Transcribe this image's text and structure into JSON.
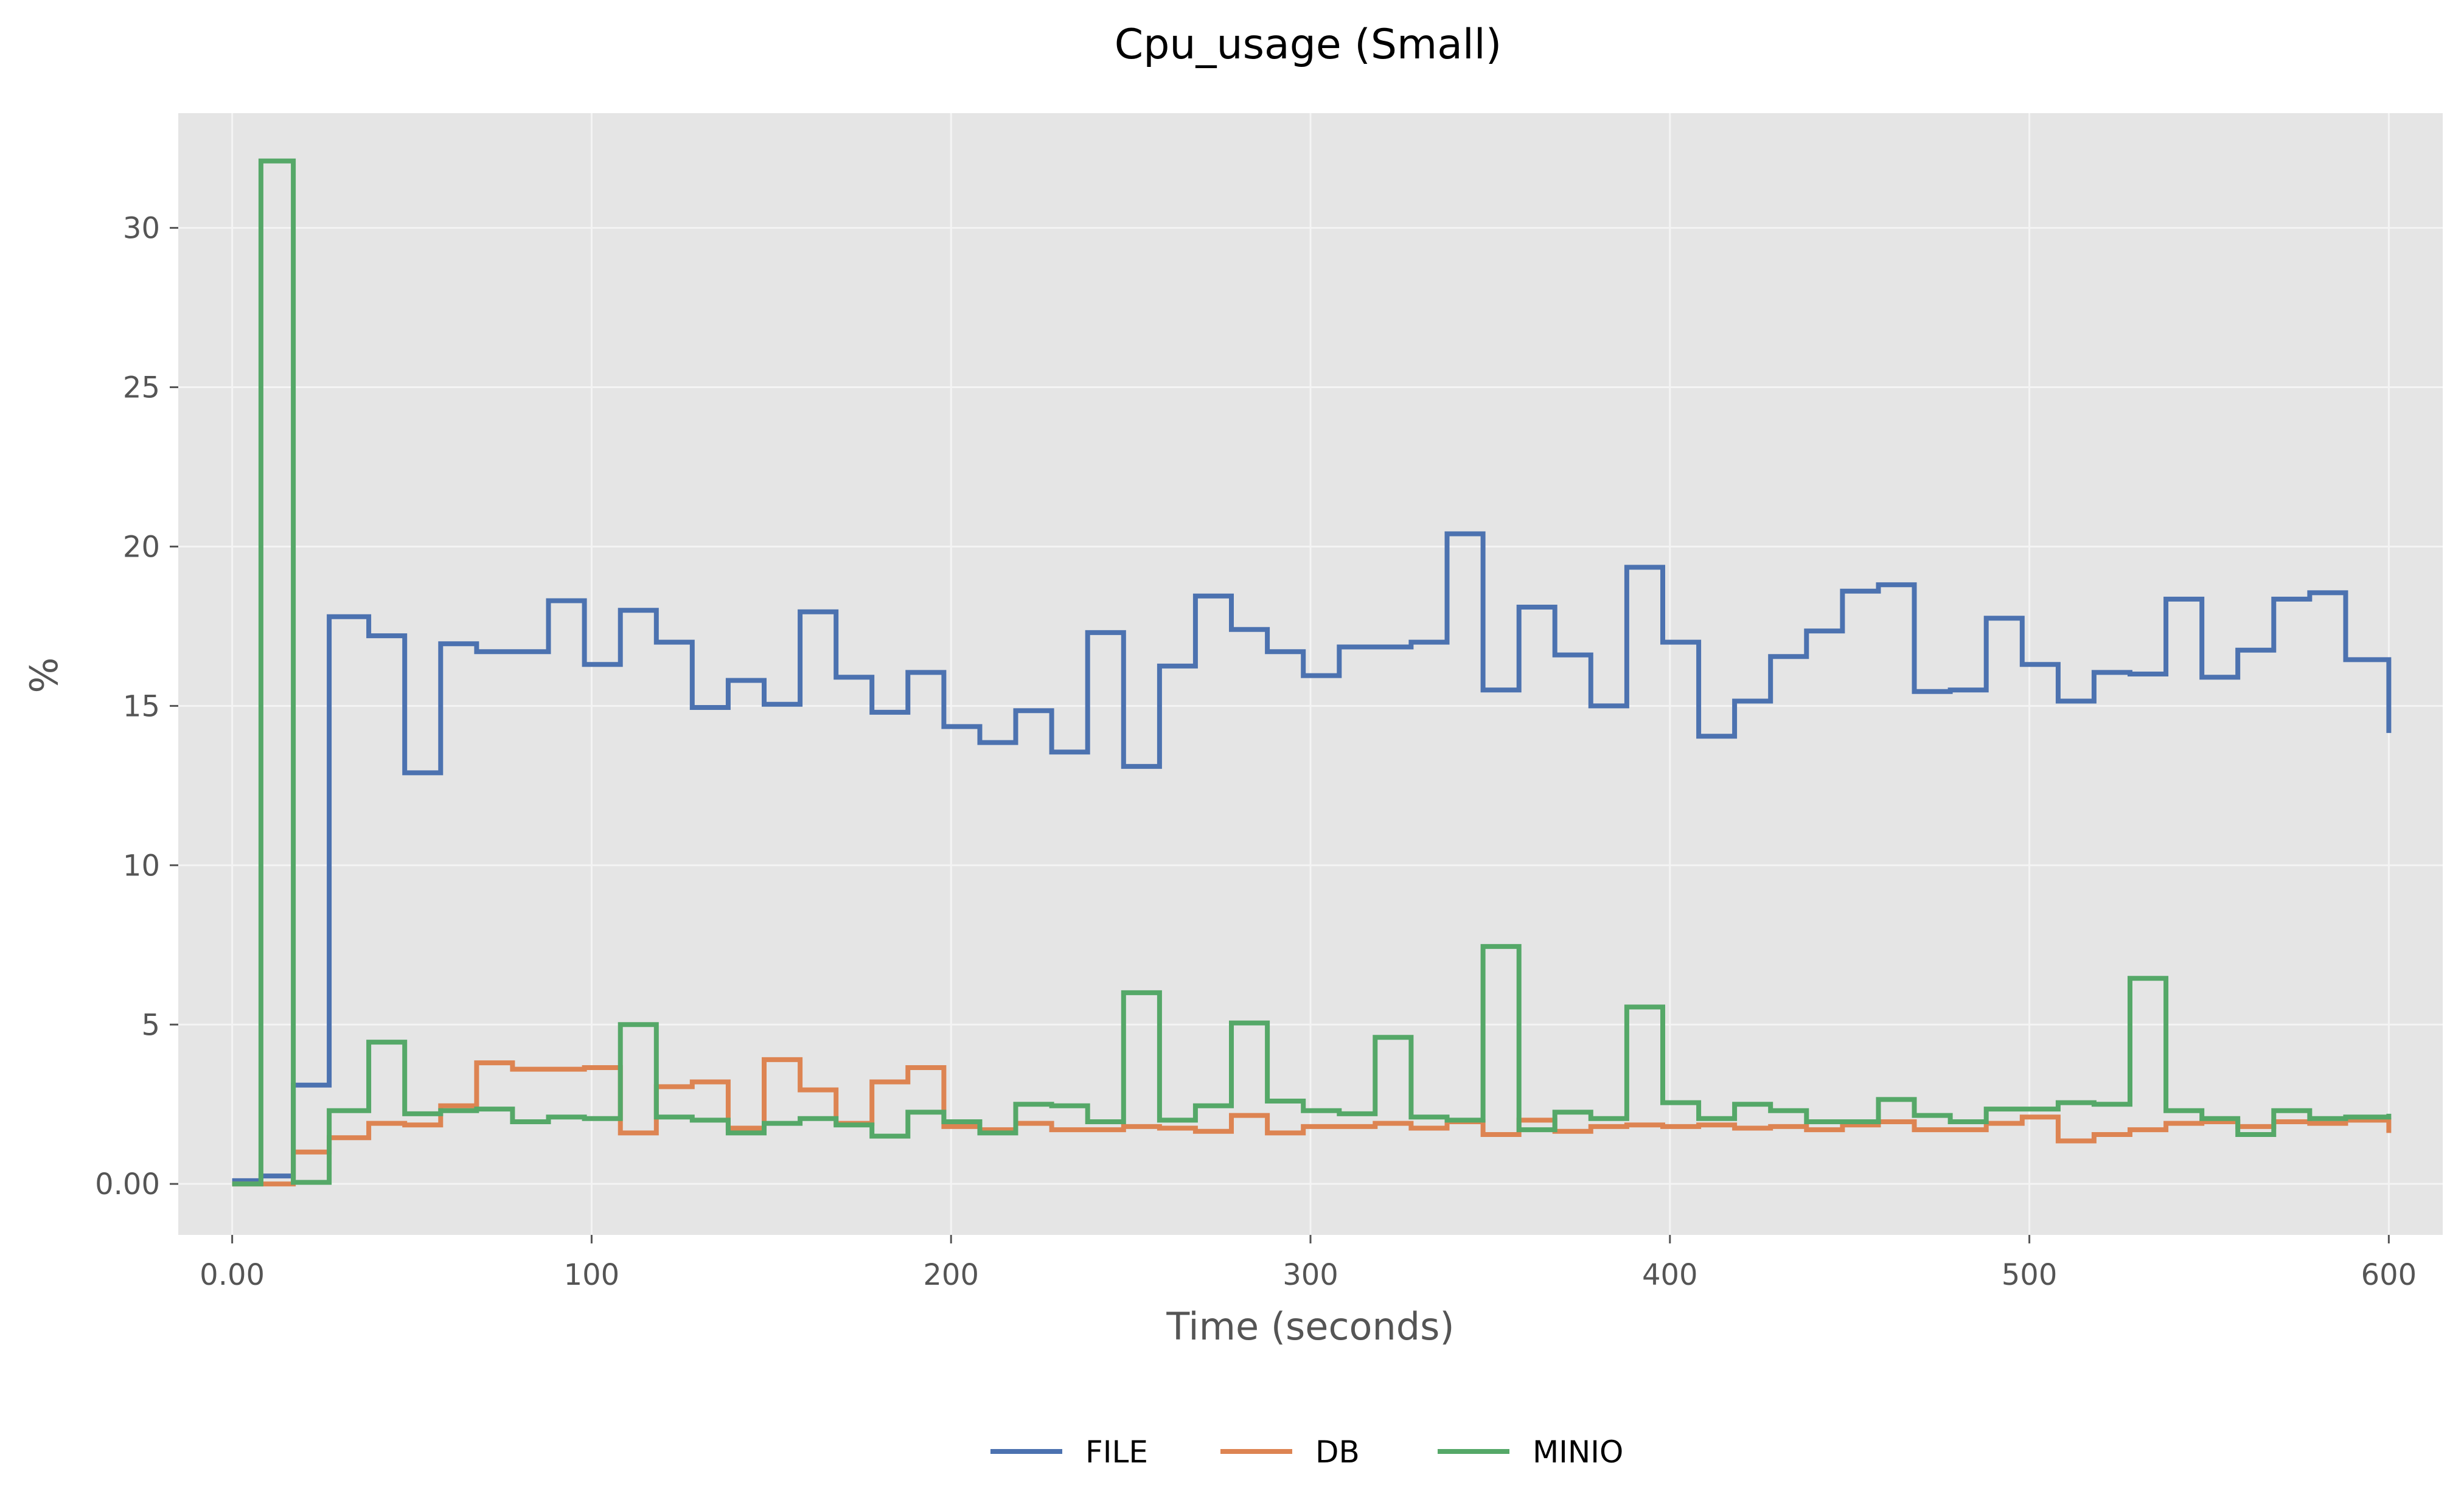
{
  "chart_data": {
    "type": "line",
    "title": "Cpu_usage (Small)",
    "xlabel": "Time (seconds)",
    "ylabel": "%",
    "xlim": [
      -15,
      615
    ],
    "ylim": [
      -1.6,
      33.6
    ],
    "x_ticks": [
      0,
      100,
      200,
      300,
      400,
      500,
      600
    ],
    "x_tick_labels": [
      "0.00",
      "100",
      "200",
      "300",
      "400",
      "500",
      "600"
    ],
    "y_ticks": [
      0,
      5,
      10,
      15,
      20,
      25,
      30
    ],
    "y_tick_labels": [
      "0.00",
      "5",
      "10",
      "15",
      "20",
      "25",
      "30"
    ],
    "grid": true,
    "step": true,
    "legend_position": "bottom-center",
    "x": [
      0,
      8,
      17,
      27,
      38,
      48,
      58,
      68,
      78,
      88,
      98,
      108,
      118,
      128,
      138,
      148,
      158,
      168,
      178,
      188,
      198,
      208,
      218,
      228,
      238,
      248,
      258,
      268,
      278,
      288,
      298,
      308,
      318,
      328,
      338,
      348,
      358,
      368,
      378,
      388,
      398,
      408,
      418,
      428,
      438,
      448,
      458,
      468,
      478,
      488,
      498,
      508,
      518,
      528,
      538,
      548,
      558,
      568,
      578,
      588,
      600
    ],
    "series": [
      {
        "name": "FILE",
        "color": "#4c72b0",
        "values": [
          0.1,
          0.25,
          3.1,
          17.8,
          17.2,
          12.9,
          16.95,
          16.7,
          16.7,
          18.3,
          16.3,
          18.0,
          17.0,
          14.95,
          15.8,
          15.05,
          17.95,
          15.9,
          14.8,
          16.05,
          14.35,
          13.85,
          14.85,
          13.55,
          17.3,
          13.1,
          16.25,
          18.45,
          17.4,
          16.7,
          15.95,
          16.85,
          16.85,
          17.0,
          20.4,
          15.5,
          18.1,
          16.6,
          15.0,
          19.35,
          17.0,
          14.05,
          15.15,
          16.55,
          17.35,
          18.6,
          18.8,
          15.45,
          15.5,
          17.75,
          16.3,
          15.15,
          16.05,
          16.0,
          18.35,
          15.9,
          16.75,
          18.35,
          18.55,
          16.45,
          14.15
        ]
      },
      {
        "name": "DB",
        "color": "#dd8452",
        "values": [
          0.0,
          0.0,
          1.0,
          1.45,
          1.9,
          1.85,
          2.45,
          3.8,
          3.6,
          3.6,
          3.65,
          1.6,
          3.05,
          3.2,
          1.75,
          3.9,
          2.95,
          1.9,
          3.2,
          3.65,
          1.8,
          1.7,
          1.9,
          1.7,
          1.7,
          1.8,
          1.75,
          1.65,
          2.15,
          1.6,
          1.8,
          1.8,
          1.9,
          1.75,
          1.95,
          1.55,
          2.0,
          1.65,
          1.8,
          1.85,
          1.8,
          1.85,
          1.75,
          1.8,
          1.7,
          1.85,
          1.95,
          1.7,
          1.7,
          1.9,
          2.1,
          1.35,
          1.55,
          1.7,
          1.9,
          1.95,
          1.8,
          1.95,
          1.9,
          2.0,
          1.6
        ]
      },
      {
        "name": "MINIO",
        "color": "#55a868",
        "values": [
          0.0,
          32.1,
          0.05,
          2.3,
          4.45,
          2.2,
          2.3,
          2.35,
          1.95,
          2.1,
          2.05,
          5.0,
          2.1,
          2.0,
          1.6,
          1.9,
          2.05,
          1.85,
          1.5,
          2.25,
          1.95,
          1.6,
          2.5,
          2.45,
          1.95,
          6.0,
          2.0,
          2.45,
          5.05,
          2.6,
          2.3,
          2.2,
          4.6,
          2.1,
          2.0,
          7.45,
          1.7,
          2.25,
          2.05,
          5.55,
          2.55,
          2.05,
          2.5,
          2.3,
          1.95,
          1.95,
          2.65,
          2.15,
          1.95,
          2.35,
          2.35,
          2.55,
          2.5,
          6.45,
          2.3,
          2.05,
          1.55,
          2.3,
          2.05,
          2.1,
          2.2
        ]
      }
    ]
  }
}
